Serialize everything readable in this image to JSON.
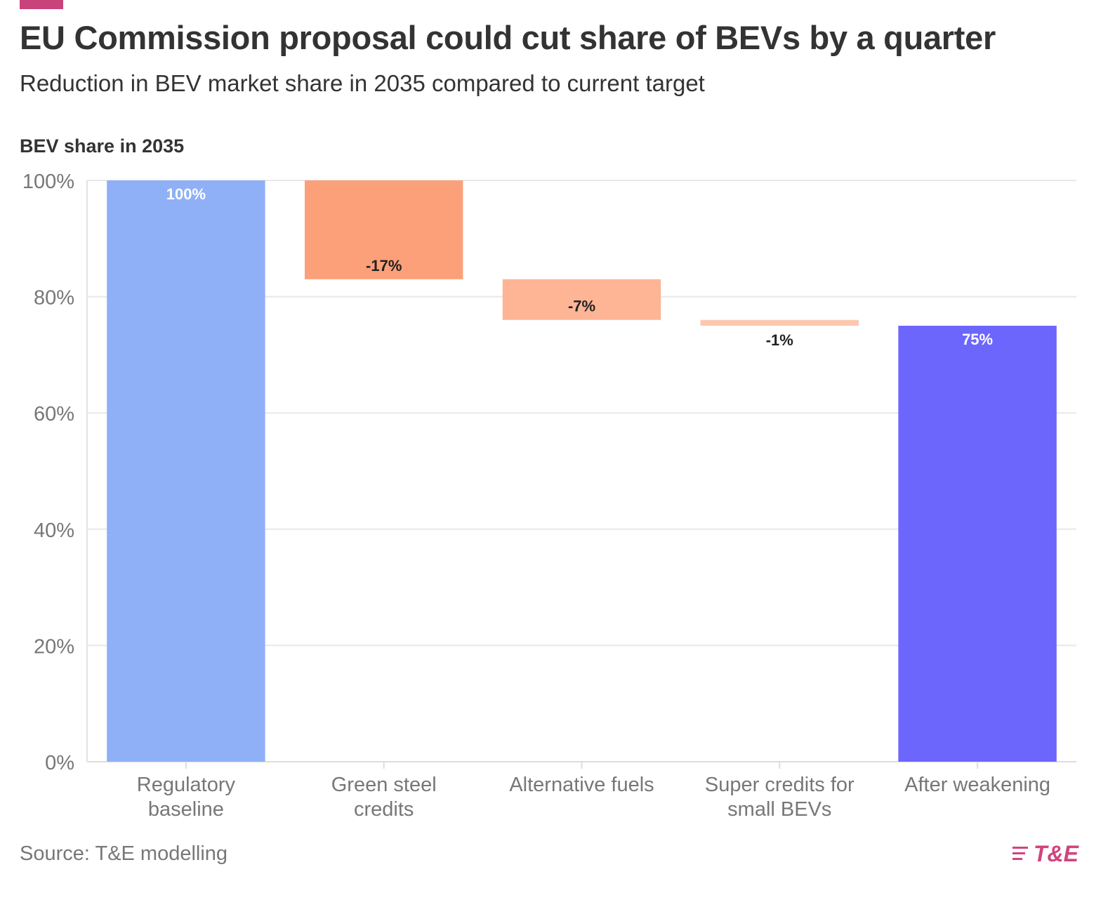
{
  "header": {
    "title": "EU Commission proposal could cut share of BEVs by a quarter",
    "subtitle": "Reduction in BEV market share in 2035 compared to current target",
    "accent_color": "#c9427a"
  },
  "footer": {
    "source": "Source: T&E modelling",
    "logo_text": "T&E",
    "logo_color": "#d1437f",
    "logo_icon": "speed-lines-icon"
  },
  "chart_data": {
    "type": "waterfall",
    "ylabel": "BEV share in 2035",
    "ylim": [
      0,
      100
    ],
    "yticks": [
      0,
      20,
      40,
      60,
      80,
      100
    ],
    "ytick_labels": [
      "0%",
      "20%",
      "40%",
      "60%",
      "80%",
      "100%"
    ],
    "grid": true,
    "categories": [
      [
        "Regulatory",
        "baseline"
      ],
      [
        "Green steel",
        "credits"
      ],
      [
        "Alternative fuels"
      ],
      [
        "Super credits for",
        "small BEVs"
      ],
      [
        "After weakening"
      ]
    ],
    "bars": [
      {
        "kind": "total",
        "start": 0,
        "end": 100,
        "label": "100%",
        "color": "#8fb0f7"
      },
      {
        "kind": "change",
        "start": 100,
        "end": 83,
        "label": "-17%",
        "color": "#fca07a"
      },
      {
        "kind": "change",
        "start": 83,
        "end": 76,
        "label": "-7%",
        "color": "#fdb596"
      },
      {
        "kind": "change",
        "start": 76,
        "end": 75,
        "label": "-1%",
        "color": "#fcc8b0"
      },
      {
        "kind": "total",
        "start": 0,
        "end": 75,
        "label": "75%",
        "color": "#6d66fd"
      }
    ]
  }
}
